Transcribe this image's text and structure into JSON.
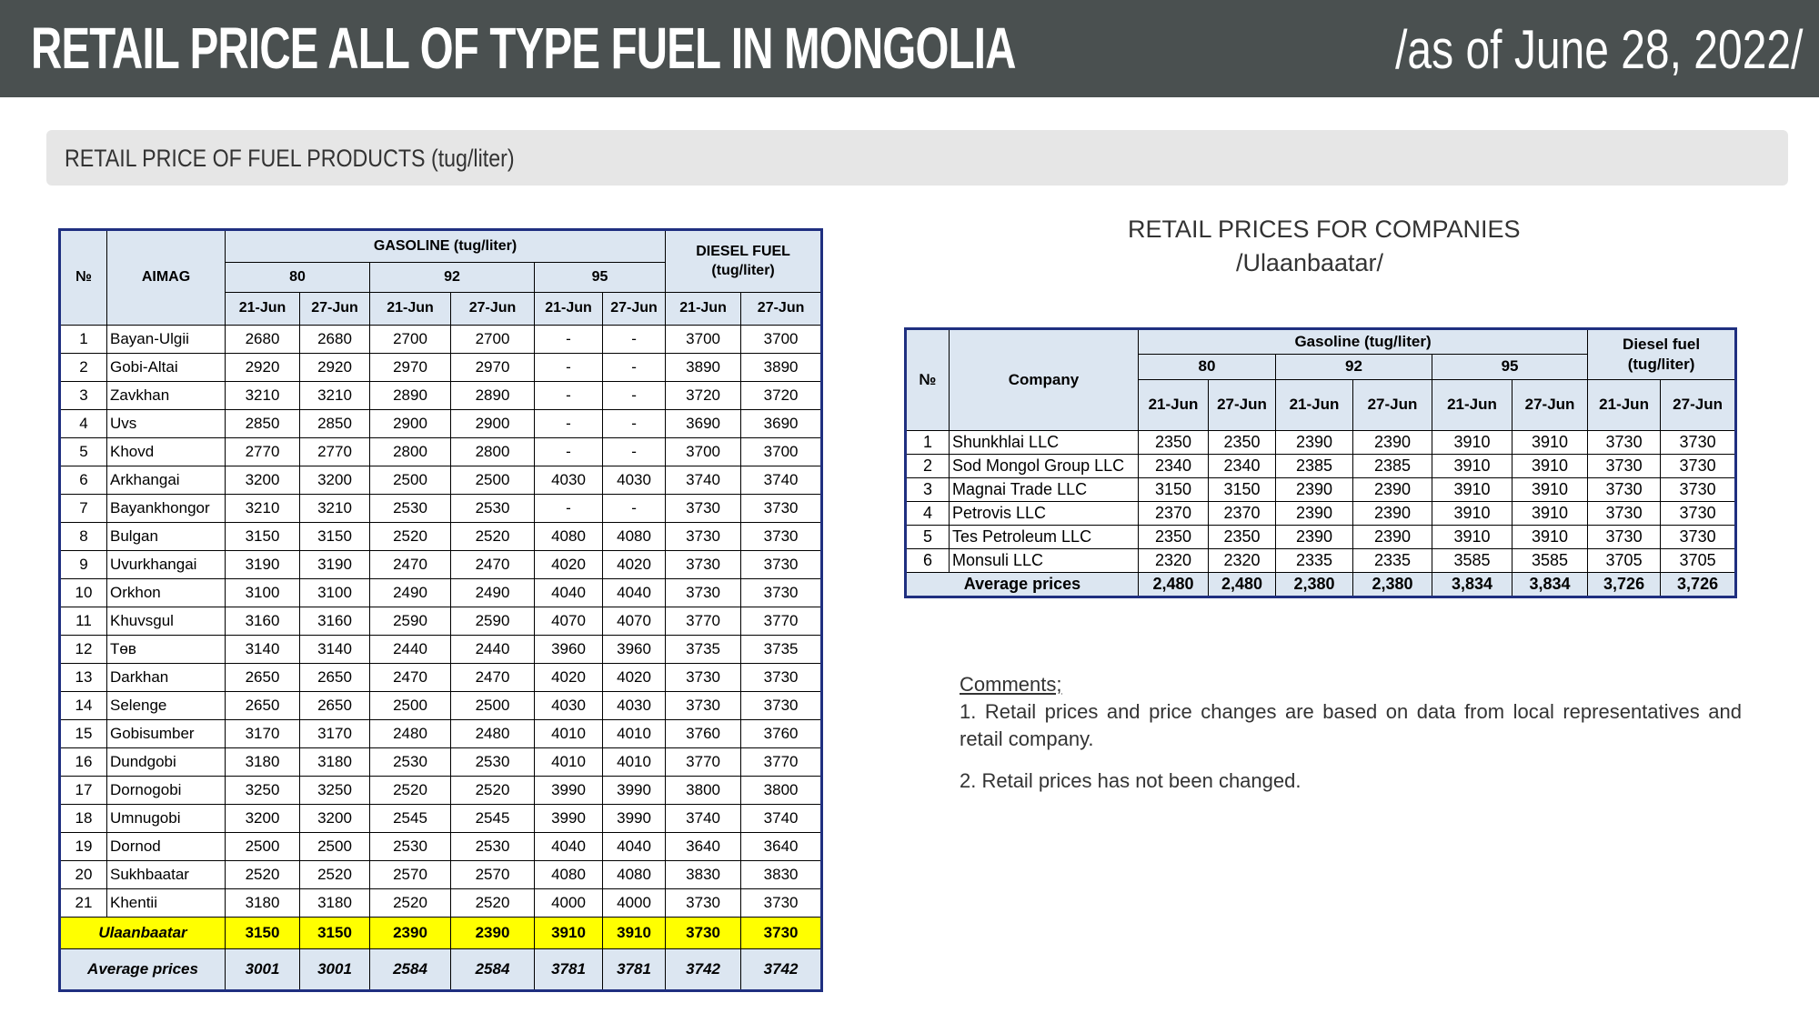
{
  "header": {
    "title": "RETAIL PRICE ALL OF TYPE FUEL IN MONGOLIA",
    "date": "/as of June 28, 2022/"
  },
  "section_title": "RETAIL PRICE OF FUEL PRODUCTS (tug/liter)",
  "aimag_table": {
    "columns": {
      "no": "№",
      "name": "AIMAG",
      "gasoline": "GASOLINE (tug/liter)",
      "diesel": "DIESEL FUEL (tug/liter)",
      "grades": [
        "80",
        "92",
        "95"
      ],
      "dates": [
        "21-Jun",
        "27-Jun",
        "21-Jun",
        "27-Jun",
        "21-Jun",
        "27-Jun",
        "21-Jun",
        "27-Jun"
      ]
    },
    "rows": [
      [
        1,
        "Bayan-Ulgii",
        2680,
        2680,
        2700,
        2700,
        "-",
        "-",
        3700,
        3700
      ],
      [
        2,
        "Gobi-Altai",
        2920,
        2920,
        2970,
        2970,
        "-",
        "-",
        3890,
        3890
      ],
      [
        3,
        "Zavkhan",
        3210,
        3210,
        2890,
        2890,
        "-",
        "-",
        3720,
        3720
      ],
      [
        4,
        "Uvs",
        2850,
        2850,
        2900,
        2900,
        "-",
        "-",
        3690,
        3690
      ],
      [
        5,
        "Khovd",
        2770,
        2770,
        2800,
        2800,
        "-",
        "-",
        3700,
        3700
      ],
      [
        6,
        "Arkhangai",
        3200,
        3200,
        2500,
        2500,
        4030,
        4030,
        3740,
        3740
      ],
      [
        7,
        "Bayankhongor",
        3210,
        3210,
        2530,
        2530,
        "-",
        "-",
        3730,
        3730
      ],
      [
        8,
        "Bulgan",
        3150,
        3150,
        2520,
        2520,
        4080,
        4080,
        3730,
        3730
      ],
      [
        9,
        "Uvurkhangai",
        3190,
        3190,
        2470,
        2470,
        4020,
        4020,
        3730,
        3730
      ],
      [
        10,
        "Orkhon",
        3100,
        3100,
        2490,
        2490,
        4040,
        4040,
        3730,
        3730
      ],
      [
        11,
        "Khuvsgul",
        3160,
        3160,
        2590,
        2590,
        4070,
        4070,
        3770,
        3770
      ],
      [
        12,
        "Төв",
        3140,
        3140,
        2440,
        2440,
        3960,
        3960,
        3735,
        3735
      ],
      [
        13,
        "Darkhan",
        2650,
        2650,
        2470,
        2470,
        4020,
        4020,
        3730,
        3730
      ],
      [
        14,
        "Selenge",
        2650,
        2650,
        2500,
        2500,
        4030,
        4030,
        3730,
        3730
      ],
      [
        15,
        "Gobisumber",
        3170,
        3170,
        2480,
        2480,
        4010,
        4010,
        3760,
        3760
      ],
      [
        16,
        "Dundgobi",
        3180,
        3180,
        2530,
        2530,
        4010,
        4010,
        3770,
        3770
      ],
      [
        17,
        "Dornogobi",
        3250,
        3250,
        2520,
        2520,
        3990,
        3990,
        3800,
        3800
      ],
      [
        18,
        "Umnugobi",
        3200,
        3200,
        2545,
        2545,
        3990,
        3990,
        3740,
        3740
      ],
      [
        19,
        "Dornod",
        2500,
        2500,
        2530,
        2530,
        4040,
        4040,
        3640,
        3640
      ],
      [
        20,
        "Sukhbaatar",
        2520,
        2520,
        2570,
        2570,
        4080,
        4080,
        3830,
        3830
      ],
      [
        21,
        "Khentii",
        3180,
        3180,
        2520,
        2520,
        4000,
        4000,
        3730,
        3730
      ]
    ],
    "summary": [
      [
        "Ulaanbaatar",
        3150,
        3150,
        2390,
        2390,
        3910,
        3910,
        3730,
        3730
      ],
      [
        "Average prices",
        3001,
        3001,
        2584,
        2584,
        3781,
        3781,
        3742,
        3742
      ]
    ]
  },
  "company_table": {
    "title": "RETAIL PRICES FOR COMPANIES",
    "subtitle": "/Ulaanbaatar/",
    "columns": {
      "no": "№",
      "name": "Company",
      "gasoline": "Gasoline (tug/liter)",
      "diesel": "Diesel fuel (tug/liter)",
      "grades": [
        "80",
        "92",
        "95"
      ],
      "dates": [
        "21-Jun",
        "27-Jun",
        "21-Jun",
        "27-Jun",
        "21-Jun",
        "27-Jun",
        "21-Jun",
        "27-Jun"
      ]
    },
    "rows": [
      [
        1,
        "Shunkhlai LLC",
        2350,
        2350,
        2390,
        2390,
        3910,
        3910,
        3730,
        3730
      ],
      [
        2,
        "Sod Mongol Group LLC",
        2340,
        2340,
        2385,
        2385,
        3910,
        3910,
        3730,
        3730
      ],
      [
        3,
        "Magnai Trade LLC",
        3150,
        3150,
        2390,
        2390,
        3910,
        3910,
        3730,
        3730
      ],
      [
        4,
        "Petrovis LLC",
        2370,
        2370,
        2390,
        2390,
        3910,
        3910,
        3730,
        3730
      ],
      [
        5,
        "Tes Petroleum LLC",
        2350,
        2350,
        2390,
        2390,
        3910,
        3910,
        3730,
        3730
      ],
      [
        6,
        "Monsuli LLC",
        2320,
        2320,
        2335,
        2335,
        3585,
        3585,
        3705,
        3705
      ]
    ],
    "summary": [
      [
        "Average prices",
        "2,480",
        "2,480",
        "2,380",
        "2,380",
        "3,834",
        "3,834",
        "3,726",
        "3,726"
      ]
    ]
  },
  "comments": {
    "title": "Comments;",
    "items": [
      "1. Retail prices and price changes are based on data from local representatives and retail company.",
      "2. Retail prices has not been changed."
    ]
  }
}
